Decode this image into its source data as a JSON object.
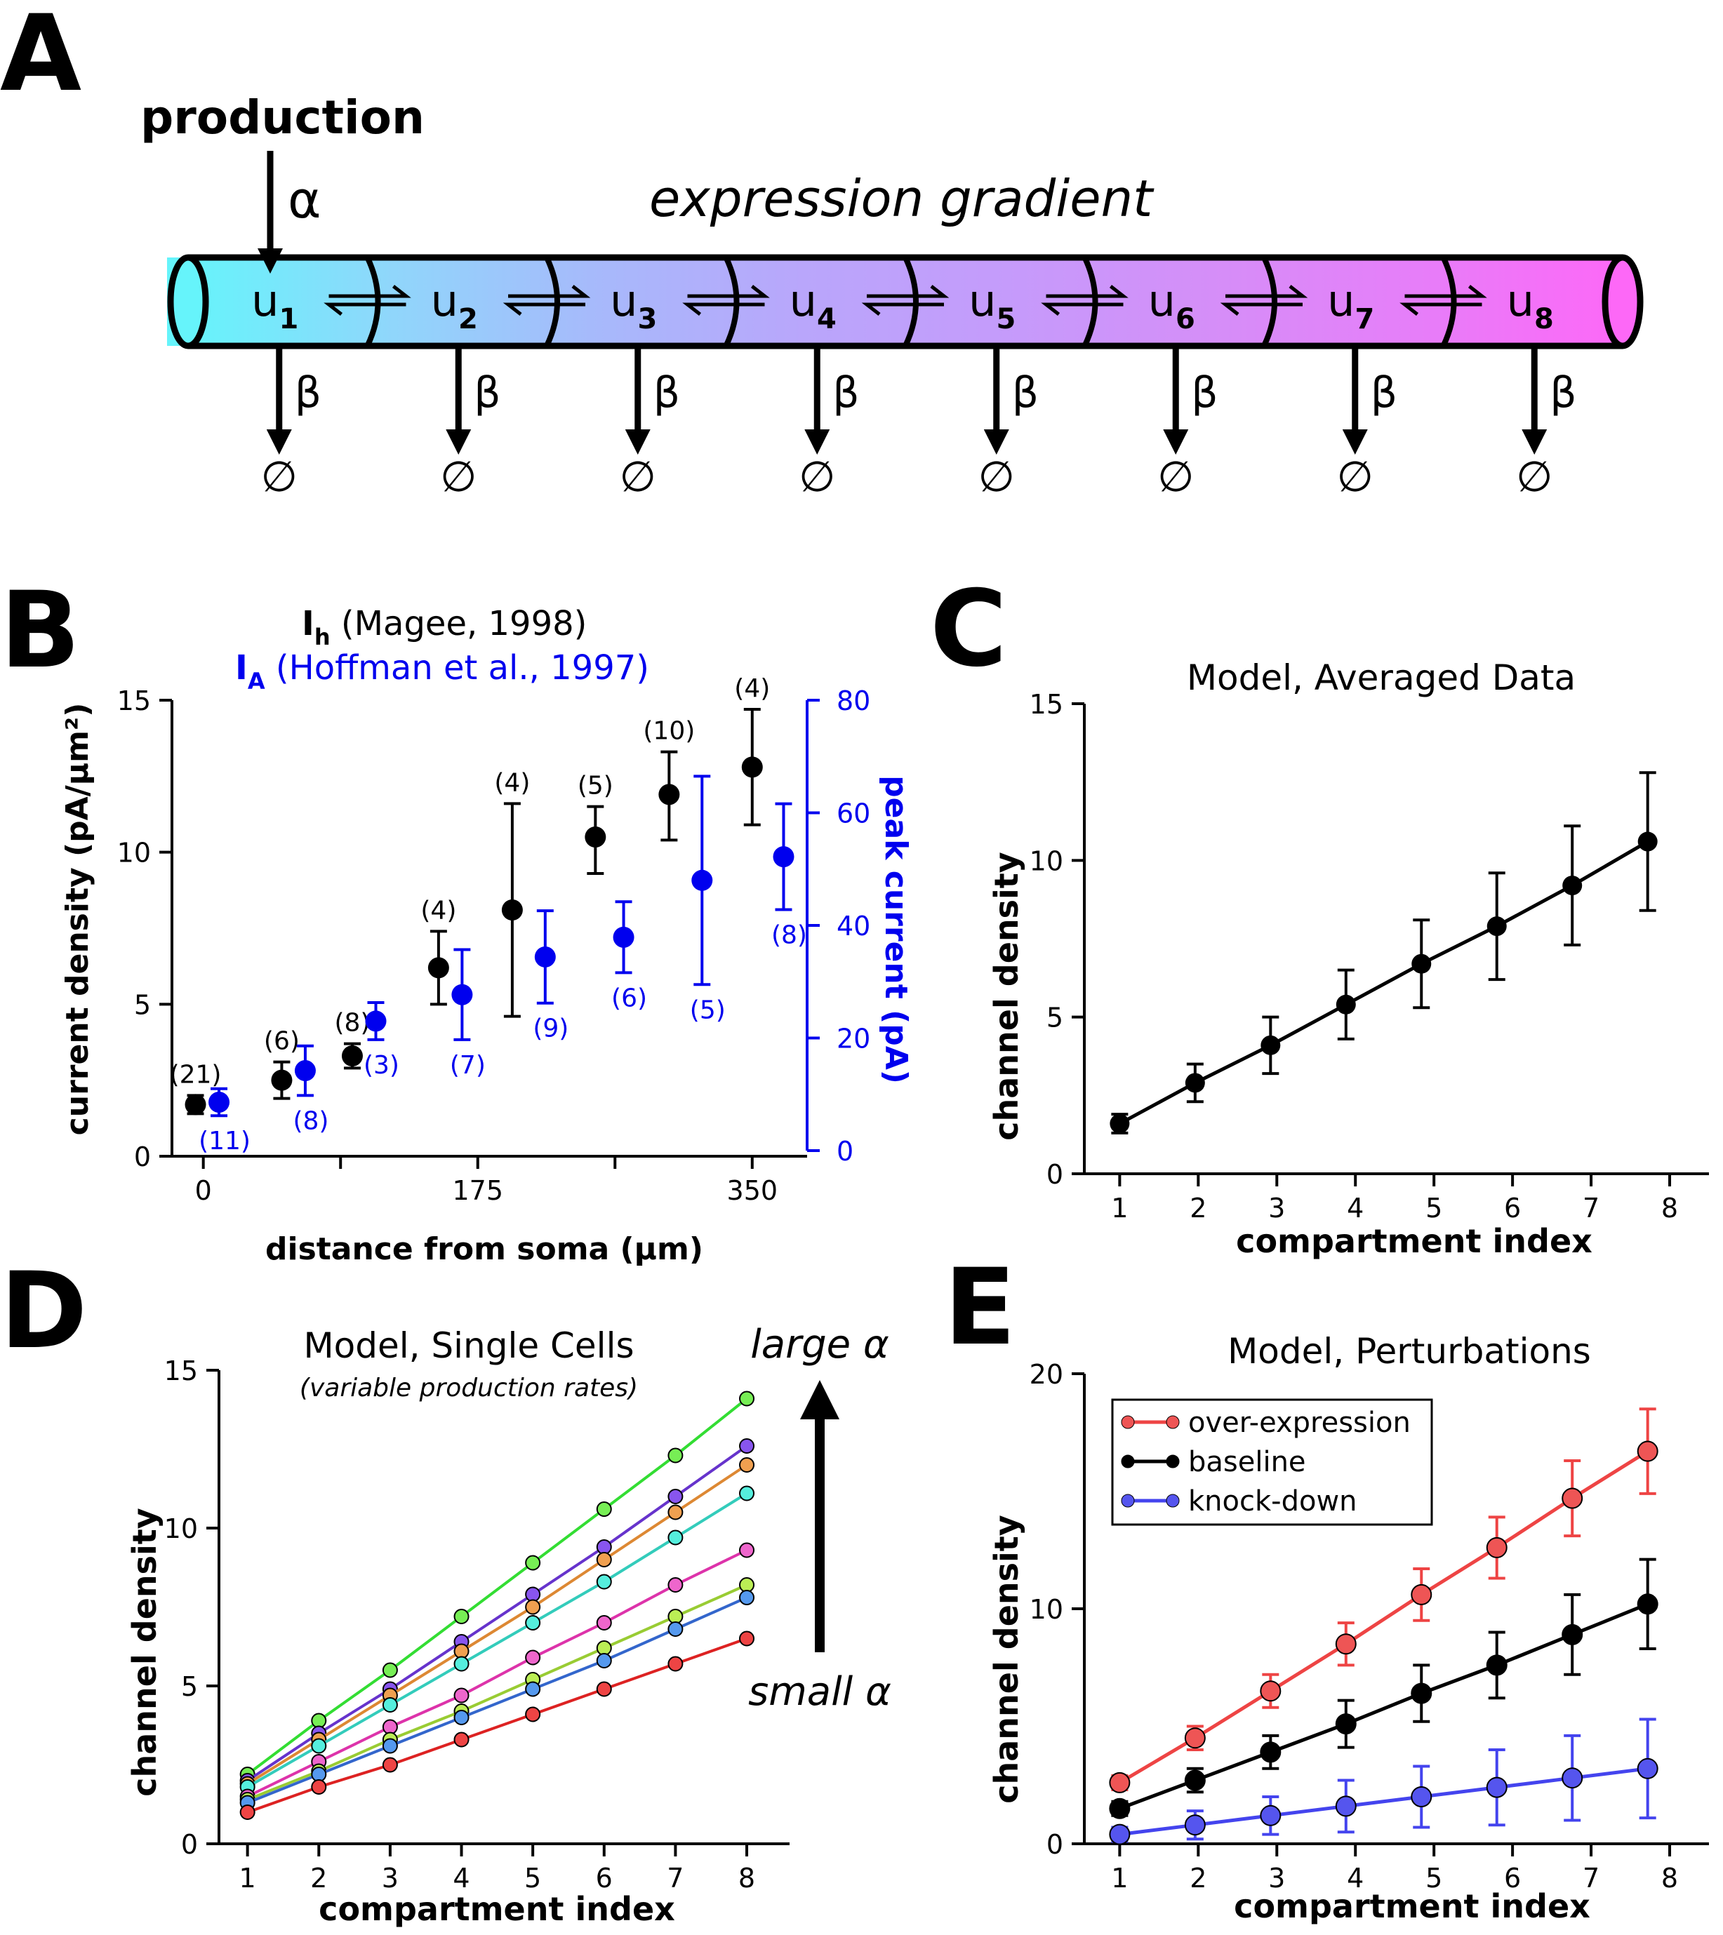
{
  "panels": {
    "A": {
      "letter": "A",
      "production_label": "production",
      "alpha": "α",
      "gradient_label": "expression gradient",
      "compartment_letter": "u",
      "compartments": [
        "1",
        "2",
        "3",
        "4",
        "5",
        "6",
        "7",
        "8"
      ],
      "beta": "β",
      "null_symbol": "∅",
      "colors": [
        "#66f4fb",
        "#90d6fb",
        "#a7b9fb",
        "#b9a6fb",
        "#c59bfb",
        "#d58ef8",
        "#e67ef9",
        "#fd68f7"
      ]
    },
    "B": {
      "letter": "B"
    },
    "C": {
      "letter": "C"
    },
    "D": {
      "letter": "D",
      "large_label": "large α",
      "small_label": "small α"
    },
    "E": {
      "letter": "E"
    }
  },
  "chart_data": [
    {
      "id": "B",
      "type": "scatter",
      "title_line1_main": "I",
      "title_line1_sub": "h",
      "title_line1_rest": " (Magee, 1998)",
      "title_line2_main": "I",
      "title_line2_sub": "A",
      "title_line2_rest": " (Hoffman et al., 1997)",
      "xlabel": "distance from soma (µm)",
      "ylabel_left": "current density (pA/µm²)",
      "ylabel_right": "peak current (pA)",
      "x_ticks": [
        "0",
        "175",
        "350"
      ],
      "y_left_ticks": [
        "0",
        "5",
        "10",
        "15"
      ],
      "y_right_ticks": [
        "0",
        "20",
        "40",
        "60",
        "80"
      ],
      "xlim": [
        -20,
        385
      ],
      "ylim_left": [
        0,
        15
      ],
      "ylim_right": [
        0,
        80
      ],
      "colors": {
        "ih": "#000000",
        "ia": "#0000ee"
      },
      "series": [
        {
          "name": "Ih",
          "axis": "left",
          "x": [
            -5,
            50,
            95,
            150,
            197,
            250,
            297,
            350
          ],
          "y": [
            1.7,
            2.5,
            3.3,
            6.2,
            8.1,
            10.5,
            11.9,
            12.8
          ],
          "err_lo": [
            0.3,
            0.6,
            0.4,
            1.2,
            3.5,
            1.2,
            1.5,
            1.9
          ],
          "err_hi": [
            0.3,
            0.6,
            0.4,
            1.2,
            3.5,
            1.0,
            1.4,
            1.9
          ],
          "labels": [
            "(21)",
            "(6)",
            "(8)",
            "(4)",
            "(4)",
            "(5)",
            "(10)",
            "(4)"
          ]
        },
        {
          "name": "IA",
          "axis": "right",
          "x": [
            10,
            65,
            110,
            165,
            218,
            268,
            318,
            370
          ],
          "y": [
            8.6,
            14.2,
            23.0,
            27.7,
            34.4,
            37.9,
            48.0,
            52.2
          ],
          "err_lo": [
            2.4,
            4.4,
            3.3,
            8.0,
            8.2,
            6.3,
            18.5,
            9.4
          ],
          "err_hi": [
            2.4,
            4.4,
            3.3,
            8.0,
            8.2,
            6.3,
            18.5,
            9.4
          ],
          "labels": [
            "(11)",
            "(8)",
            "(3)",
            "(7)",
            "(9)",
            "(6)",
            "(5)",
            "(8)"
          ]
        }
      ]
    },
    {
      "id": "C",
      "type": "line",
      "title": "Model, Averaged Data",
      "xlabel": "compartment index",
      "ylabel": "channel density",
      "x_ticks": [
        "1",
        "2",
        "3",
        "4",
        "5",
        "6",
        "7",
        "8"
      ],
      "y_ticks": [
        "0",
        "5",
        "10",
        "15"
      ],
      "xlim": [
        0.55,
        8.5
      ],
      "ylim": [
        0,
        15
      ],
      "series": [
        {
          "color": "#000000",
          "x": [
            1,
            2,
            3,
            4,
            5,
            6,
            7,
            8
          ],
          "y": [
            1.6,
            2.9,
            4.1,
            5.4,
            6.7,
            7.9,
            9.2,
            10.6
          ],
          "err": [
            0.3,
            0.6,
            0.9,
            1.1,
            1.4,
            1.7,
            1.9,
            2.2
          ]
        }
      ]
    },
    {
      "id": "D",
      "type": "line",
      "title": "Model, Single Cells",
      "subtitle": "(variable production rates)",
      "xlabel": "compartment index",
      "ylabel": "channel density",
      "x_ticks": [
        "1",
        "2",
        "3",
        "4",
        "5",
        "6",
        "7",
        "8"
      ],
      "y_ticks": [
        "0",
        "5",
        "10",
        "15"
      ],
      "xlim": [
        0.6,
        8.6
      ],
      "ylim": [
        0,
        15
      ],
      "series": [
        {
          "color": "#33dd33",
          "fill": "#77ee55",
          "y": [
            2.2,
            3.9,
            5.5,
            7.2,
            8.9,
            10.6,
            12.3,
            14.1
          ]
        },
        {
          "color": "#6633cc",
          "fill": "#8855ee",
          "y": [
            2.0,
            3.5,
            4.9,
            6.4,
            7.9,
            9.4,
            11.0,
            12.6
          ]
        },
        {
          "color": "#dd8833",
          "fill": "#f0a050",
          "y": [
            1.9,
            3.3,
            4.7,
            6.1,
            7.5,
            9.0,
            10.5,
            12.0
          ]
        },
        {
          "color": "#33ccbb",
          "fill": "#55eedd",
          "y": [
            1.8,
            3.1,
            4.4,
            5.7,
            7.0,
            8.3,
            9.7,
            11.1
          ]
        },
        {
          "color": "#dd33aa",
          "fill": "#ee66cc",
          "y": [
            1.5,
            2.6,
            3.7,
            4.7,
            5.9,
            7.0,
            8.2,
            9.3
          ]
        },
        {
          "color": "#99cc33",
          "fill": "#bbee55",
          "y": [
            1.4,
            2.3,
            3.3,
            4.2,
            5.2,
            6.2,
            7.2,
            8.2
          ]
        },
        {
          "color": "#3366cc",
          "fill": "#5599ee",
          "y": [
            1.3,
            2.2,
            3.1,
            4.0,
            4.9,
            5.8,
            6.8,
            7.8
          ]
        },
        {
          "color": "#dd2222",
          "fill": "#ee4444",
          "y": [
            1.0,
            1.8,
            2.5,
            3.3,
            4.1,
            4.9,
            5.7,
            6.5
          ]
        }
      ],
      "x": [
        1,
        2,
        3,
        4,
        5,
        6,
        7,
        8
      ]
    },
    {
      "id": "E",
      "type": "line",
      "title": "Model, Perturbations",
      "xlabel": "compartment index",
      "ylabel": "channel density",
      "x_ticks": [
        "1",
        "2",
        "3",
        "4",
        "5",
        "6",
        "7",
        "8"
      ],
      "y_ticks": [
        "0",
        "10",
        "20"
      ],
      "xlim": [
        0.55,
        8.5
      ],
      "ylim": [
        0,
        20
      ],
      "legend": "top-left",
      "series": [
        {
          "name": "over-expression",
          "color": "#ee4444",
          "fill": "#ee5555",
          "x": [
            1,
            2,
            3,
            4,
            5,
            6,
            7,
            8
          ],
          "y": [
            2.6,
            4.5,
            6.5,
            8.5,
            10.6,
            12.6,
            14.7,
            16.7
          ],
          "err": [
            0.3,
            0.5,
            0.7,
            0.9,
            1.1,
            1.3,
            1.6,
            1.8
          ]
        },
        {
          "name": "baseline",
          "color": "#000000",
          "fill": "#000000",
          "x": [
            1,
            2,
            3,
            4,
            5,
            6,
            7,
            8
          ],
          "y": [
            1.5,
            2.7,
            3.9,
            5.1,
            6.4,
            7.6,
            8.9,
            10.2
          ],
          "err": [
            0.3,
            0.5,
            0.7,
            1.0,
            1.2,
            1.4,
            1.7,
            1.9
          ]
        },
        {
          "name": "knock-down",
          "color": "#4444ee",
          "fill": "#5555ee",
          "x": [
            1,
            2,
            3,
            4,
            5,
            6,
            7,
            8
          ],
          "y": [
            0.4,
            0.8,
            1.2,
            1.6,
            2.0,
            2.4,
            2.8,
            3.2
          ],
          "err": [
            0.3,
            0.6,
            0.8,
            1.1,
            1.3,
            1.6,
            1.8,
            2.1
          ]
        }
      ]
    }
  ]
}
